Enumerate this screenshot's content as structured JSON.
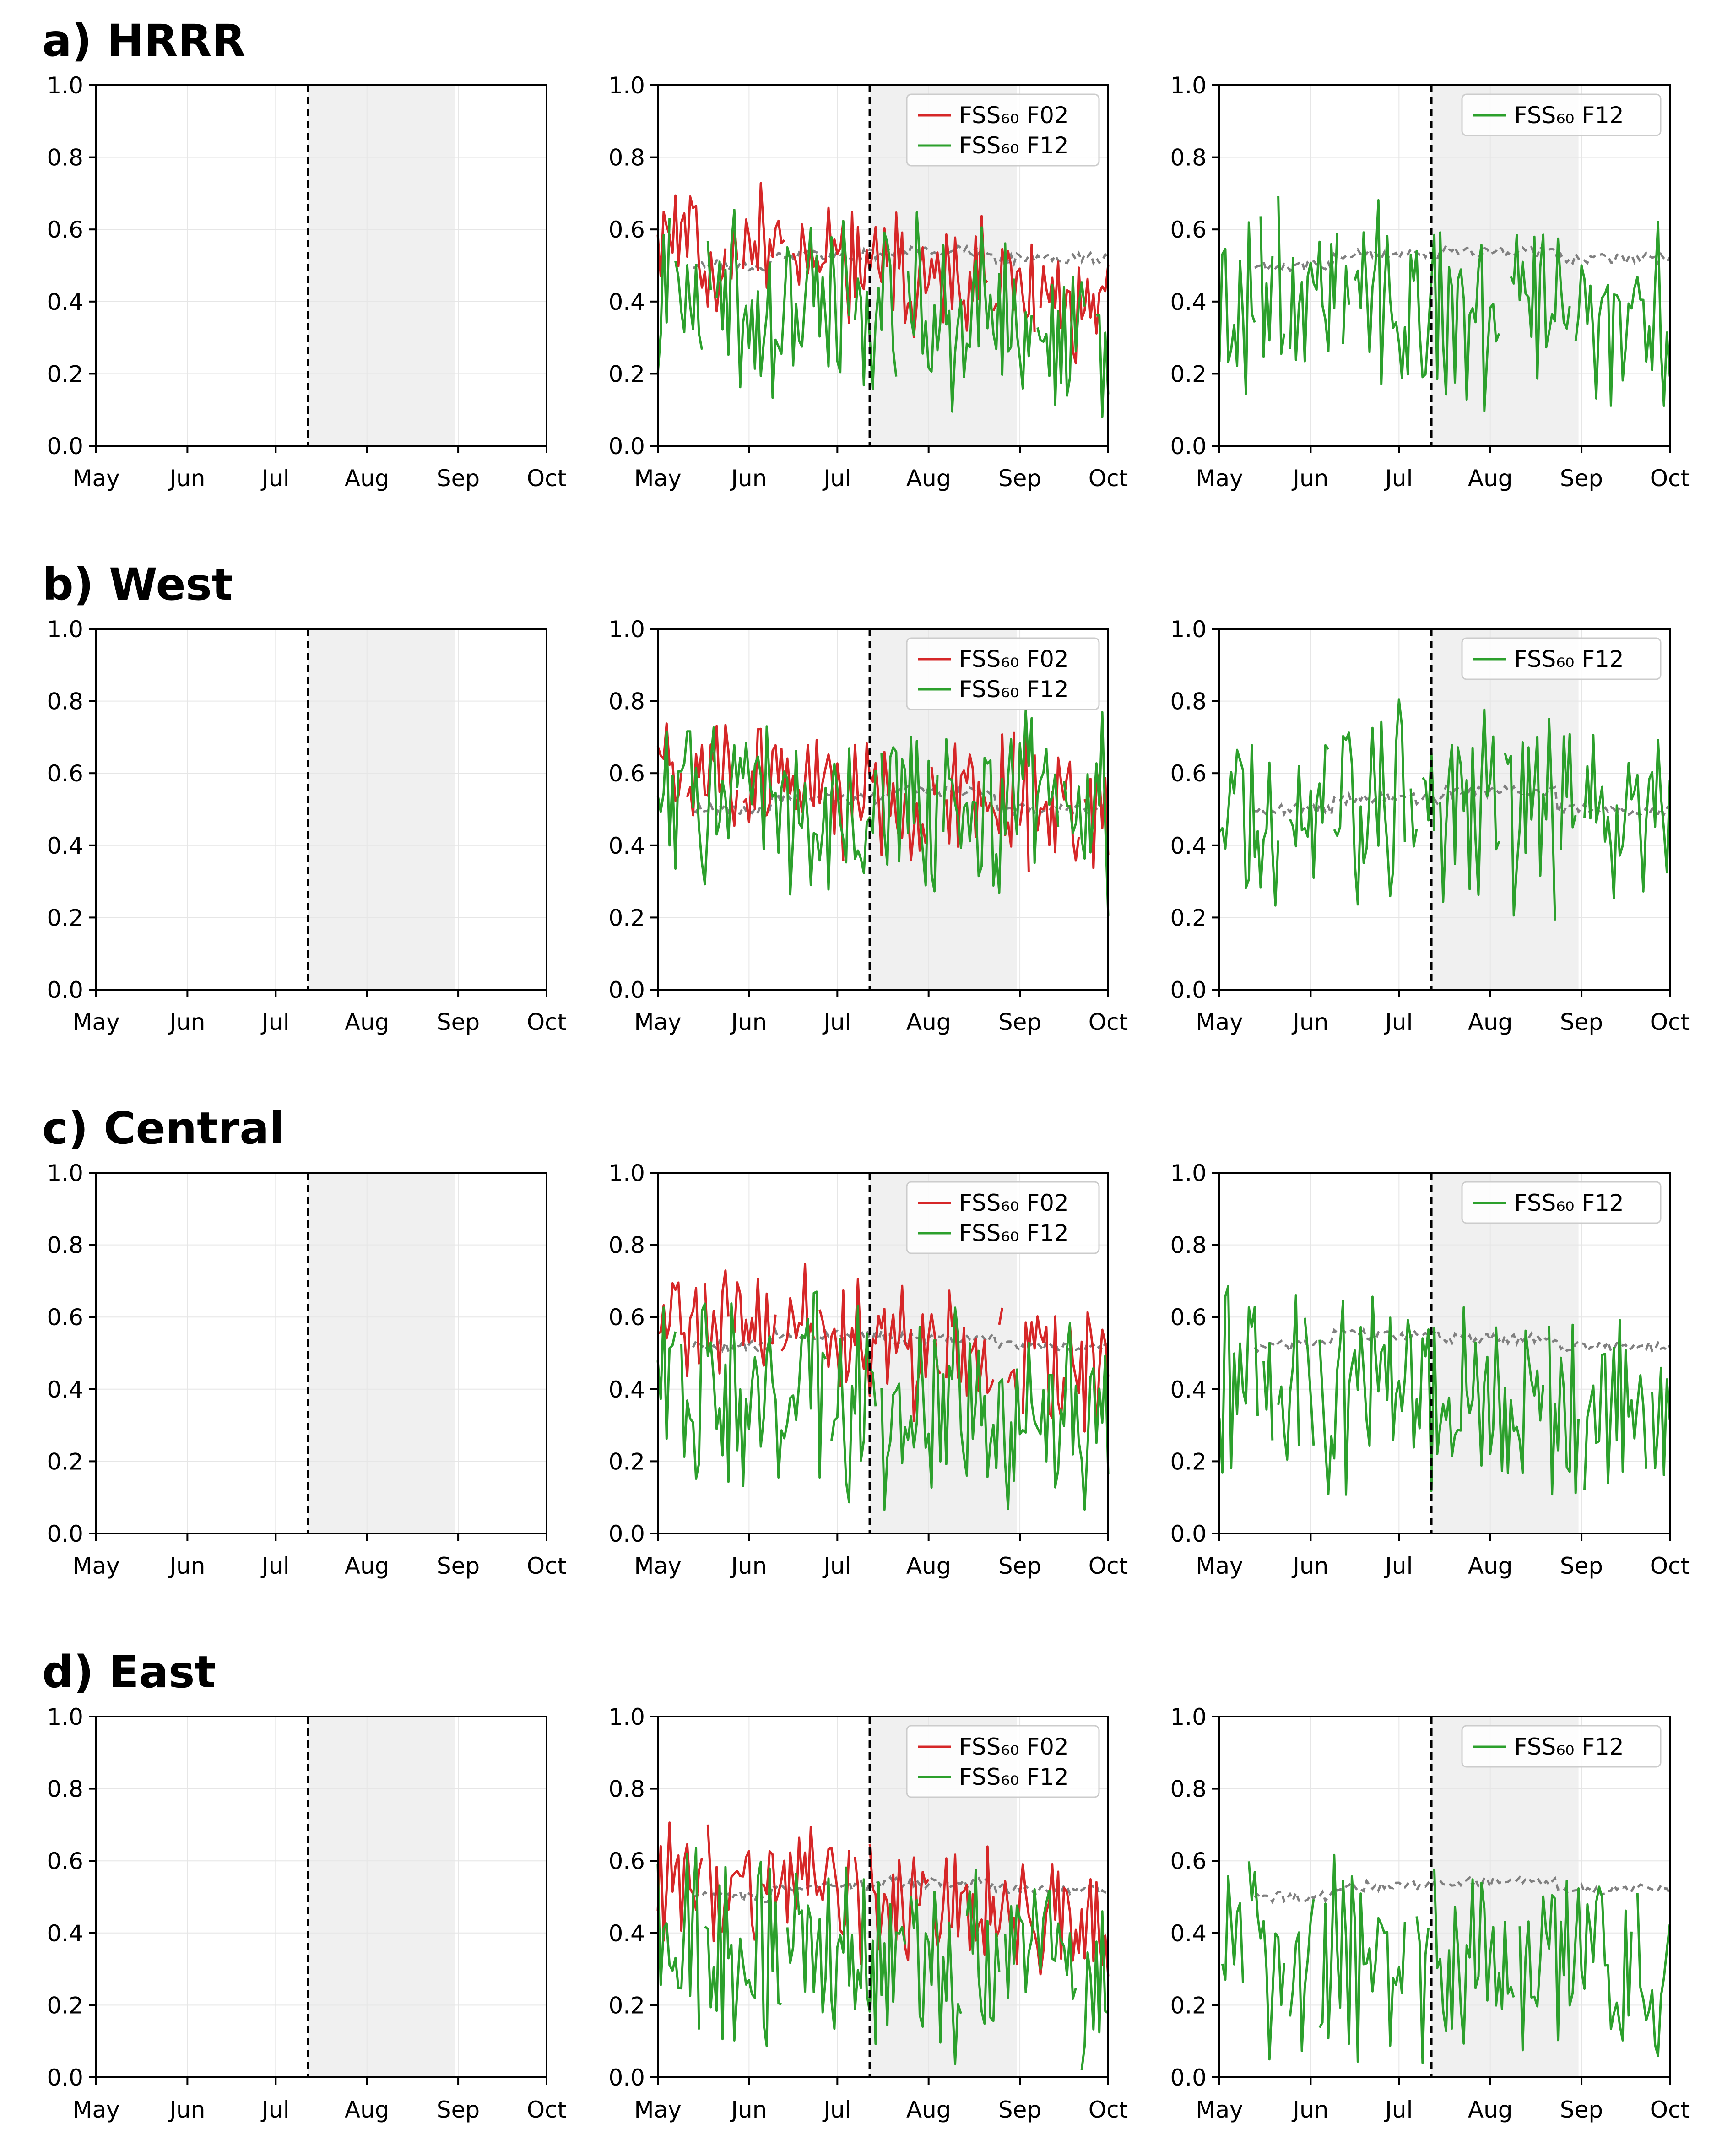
{
  "figure": {
    "rows": [
      {
        "title": "a) HRRR",
        "gray_mean": [
          0.5,
          0.53,
          0.54,
          0.52
        ],
        "seed": 11
      },
      {
        "title": "b) West",
        "gray_mean": [
          0.5,
          0.53,
          0.55,
          0.5
        ],
        "seed": 23
      },
      {
        "title": "c) Central",
        "gray_mean": [
          0.52,
          0.55,
          0.54,
          0.52
        ],
        "seed": 37
      },
      {
        "title": "d) East",
        "gray_mean": [
          0.5,
          0.53,
          0.54,
          0.52
        ],
        "seed": 51
      }
    ],
    "legend_entries_two": [
      "FSS₆₀ F02",
      "FSS₆₀ F12"
    ],
    "legend_entries_one": [
      "FSS₆₀ F12"
    ],
    "colors": {
      "f02": "#d62728",
      "f12": "#2ca02c",
      "ref": "#808080",
      "shade": "#f0f0f0",
      "grid": "#e6e6e6"
    }
  },
  "chart_data": [
    {
      "type": "line",
      "panel_layout": "4 rows x 3 columns; first column empty axes",
      "x": {
        "ticks": [
          "May",
          "Jun",
          "Jul",
          "Aug",
          "Sep",
          "Oct"
        ],
        "range": [
          "2019-05-01",
          "2019-10-01"
        ]
      },
      "ylim": [
        0.0,
        1.0
      ],
      "yticks": [
        "0.0",
        "0.2",
        "0.4",
        "0.6",
        "0.8",
        "1.0"
      ],
      "vline": "2019-07-12",
      "shaded_period": [
        "2019-07-12",
        "2019-08-31"
      ],
      "series": [
        {
          "name": "FSS₆₀ F02",
          "color": "#d62728"
        },
        {
          "name": "FSS₆₀ F12",
          "color": "#2ca02c"
        }
      ],
      "approximate_levels": {
        "a) HRRR": {
          "F02_early": 0.58,
          "F02_late": 0.42,
          "F12_early": 0.42,
          "F12_late": 0.33,
          "reference": 0.52
        },
        "b) West": {
          "F02_early": 0.6,
          "F02_late": 0.5,
          "F12_early": 0.52,
          "F12_late": 0.47,
          "reference": 0.52
        },
        "c) Central": {
          "F02_early": 0.63,
          "F02_late": 0.42,
          "F12_early": 0.42,
          "F12_late": 0.32,
          "reference": 0.53
        },
        "d) East": {
          "F02_early": 0.55,
          "F02_late": 0.45,
          "F12_early": 0.35,
          "F12_late": 0.3,
          "reference": 0.52
        }
      }
    }
  ]
}
